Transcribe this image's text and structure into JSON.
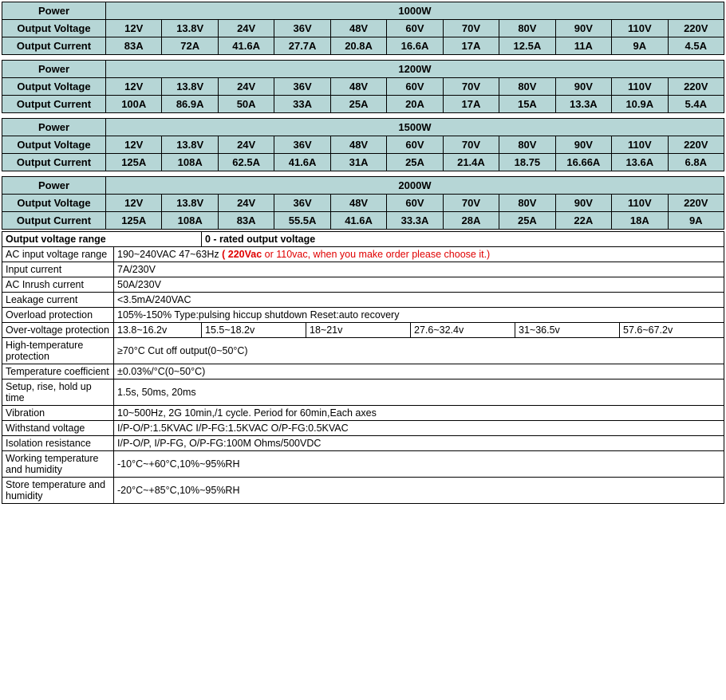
{
  "power_tables": [
    {
      "power": "1000W",
      "voltage_label": "Output Voltage",
      "current_label": "Output Current",
      "voltages": [
        "12V",
        "13.8V",
        "24V",
        "36V",
        "48V",
        "60V",
        "70V",
        "80V",
        "90V",
        "110V",
        "220V"
      ],
      "currents": [
        "83A",
        "72A",
        "41.6A",
        "27.7A",
        "20.8A",
        "16.6A",
        "17A",
        "12.5A",
        "11A",
        "9A",
        "4.5A"
      ]
    },
    {
      "power": "1200W",
      "voltage_label": "Output Voltage",
      "current_label": "Output Current",
      "voltages": [
        "12V",
        "13.8V",
        "24V",
        "36V",
        "48V",
        "60V",
        "70V",
        "80V",
        "90V",
        "110V",
        "220V"
      ],
      "currents": [
        "100A",
        "86.9A",
        "50A",
        "33A",
        "25A",
        "20A",
        "17A",
        "15A",
        "13.3A",
        "10.9A",
        "5.4A"
      ]
    },
    {
      "power": "1500W",
      "voltage_label": "Output Voltage",
      "current_label": "Output Current",
      "voltages": [
        "12V",
        "13.8V",
        "24V",
        "36V",
        "48V",
        "60V",
        "70V",
        "80V",
        "90V",
        "110V",
        "220V"
      ],
      "currents": [
        "125A",
        "108A",
        "62.5A",
        "41.6A",
        "31A",
        "25A",
        "21.4A",
        "18.75",
        "16.66A",
        "13.6A",
        "6.8A"
      ]
    },
    {
      "power": "2000W",
      "voltage_label": "Output Voltage",
      "current_label": "Output Current",
      "voltages": [
        "12V",
        "13.8V",
        "24V",
        "36V",
        "48V",
        "60V",
        "70V",
        "80V",
        "90V",
        "110V",
        "220V"
      ],
      "currents": [
        "125A",
        "108A",
        "83A",
        "55.5A",
        "41.6A",
        "33.3A",
        "28A",
        "25A",
        "22A",
        "18A",
        "9A"
      ]
    }
  ],
  "power_label": "Power",
  "col_widths": {
    "label": "130px"
  },
  "ovr_header": {
    "label": "Output voltage range",
    "value": "0 - rated output voltage"
  },
  "specs": [
    {
      "label": "AC input voltage range",
      "value_plain": "190~240VAC 47~63Hz ",
      "value_red_bold": "( 220Vac",
      "value_red": " or 110vac, when you make order please choose it.)"
    },
    {
      "label": "Input current",
      "value": "7A/230V"
    },
    {
      "label": "AC Inrush current",
      "value": "50A/230V"
    },
    {
      "label": "Leakage current",
      "value": "<3.5mA/240VAC"
    },
    {
      "label": "Overload protection",
      "value": "105%-150% Type:pulsing hiccup shutdown  Reset:auto recovery"
    },
    {
      "label": "Over-voltage protection",
      "ovp": [
        "13.8~16.2v",
        "15.5~18.2v",
        "18~21v",
        "27.6~32.4v",
        "31~36.5v",
        "57.6~67.2v"
      ]
    },
    {
      "label": "High-temperature protection",
      "value": "≥70°C Cut off output(0~50°C)"
    },
    {
      "label": "Temperature coefficient",
      "value": "±0.03%/°C(0~50°C)"
    },
    {
      "label": "Setup, rise, hold up time",
      "value": "1.5s, 50ms, 20ms"
    },
    {
      "label": "Vibration",
      "value": "10~500Hz, 2G 10min,/1 cycle. Period for 60min,Each axes"
    },
    {
      "label": "Withstand voltage",
      "value": "I/P-O/P:1.5KVAC  I/P-FG:1.5KVAC  O/P-FG:0.5KVAC"
    },
    {
      "label": "Isolation resistance",
      "value": "I/P-O/P, I/P-FG, O/P-FG:100M Ohms/500VDC"
    },
    {
      "label": "Working temperature and humidity",
      "value": "-10°C~+60°C,10%~95%RH"
    },
    {
      "label": "Store temperature and humidity",
      "value": "-20°C~+85°C,10%~95%RH"
    }
  ]
}
